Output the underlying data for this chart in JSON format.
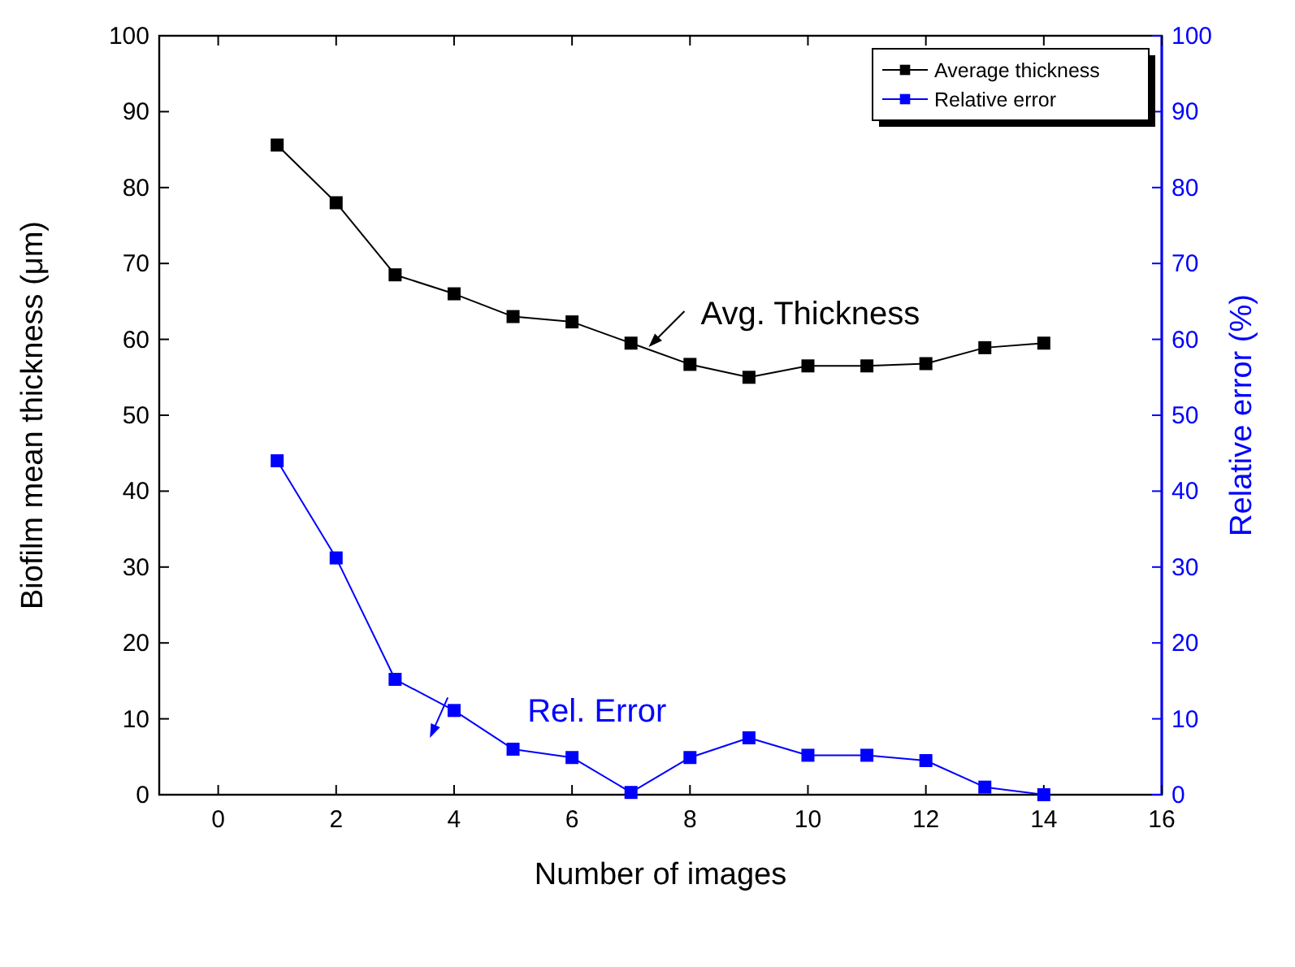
{
  "chart_data": {
    "type": "line",
    "xlabel": "Number of images",
    "ylabel": "Biofilm mean thickness (μm)",
    "y2label": "Relative error (%)",
    "x": [
      1,
      2,
      3,
      4,
      5,
      6,
      7,
      8,
      9,
      10,
      11,
      12,
      13,
      14
    ],
    "series": [
      {
        "name": "Average thickness",
        "color": "#000000",
        "values": [
          85.6,
          78,
          68.5,
          66,
          63,
          62.3,
          59.5,
          56.7,
          55,
          56.5,
          56.5,
          56.8,
          58.9,
          59.5
        ]
      },
      {
        "name": "Relative error",
        "color": "#0000ff",
        "axis": "y2",
        "values": [
          44,
          31.2,
          15.2,
          11.1,
          6,
          4.9,
          0.3,
          4.9,
          7.5,
          5.2,
          5.2,
          4.5,
          1,
          0
        ]
      }
    ],
    "xlim": [
      -1,
      16
    ],
    "xticks": [
      0,
      2,
      4,
      6,
      8,
      10,
      12,
      14,
      16
    ],
    "ylim": [
      0,
      100
    ],
    "yticks": [
      0,
      10,
      20,
      30,
      40,
      50,
      60,
      70,
      80,
      90,
      100
    ],
    "y2lim": [
      0,
      100
    ],
    "y2ticks": [
      0,
      10,
      20,
      30,
      40,
      50,
      60,
      70,
      80,
      90,
      100
    ],
    "annotations": [
      {
        "text": "Avg. Thickness",
        "x": 7.3,
        "y": 59
      },
      "Rel. Error"
    ],
    "legend": "top right",
    "marker": "square",
    "line_style": "solid",
    "grid": false
  }
}
